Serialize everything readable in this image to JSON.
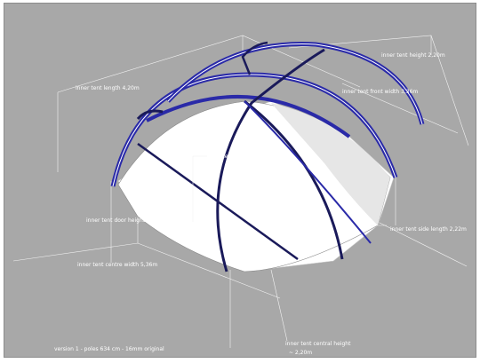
{
  "labels": {
    "inner_length": "inner tent length 4,20m",
    "inner_height": "inner tent height 2,20m",
    "inner_front_width": "inner tent front width 3,36m",
    "floor_surface": "inner tent floor surface : 16,35m",
    "door_height": "inner tent door height 1,60m",
    "side_length": "inner tent side length 2,22m",
    "centre_width": "inner tent centre width 5,36m",
    "version": "version 1 - poles 634 cm - 16mm original",
    "central_height_line1": "inner tent central height",
    "central_height_line2": "~ 2,20m"
  },
  "colors": {
    "background": "#a8a8a8",
    "pole": "#2a2aa8",
    "pole_dark": "#1a1a5a",
    "canvas": "#ffffff"
  }
}
